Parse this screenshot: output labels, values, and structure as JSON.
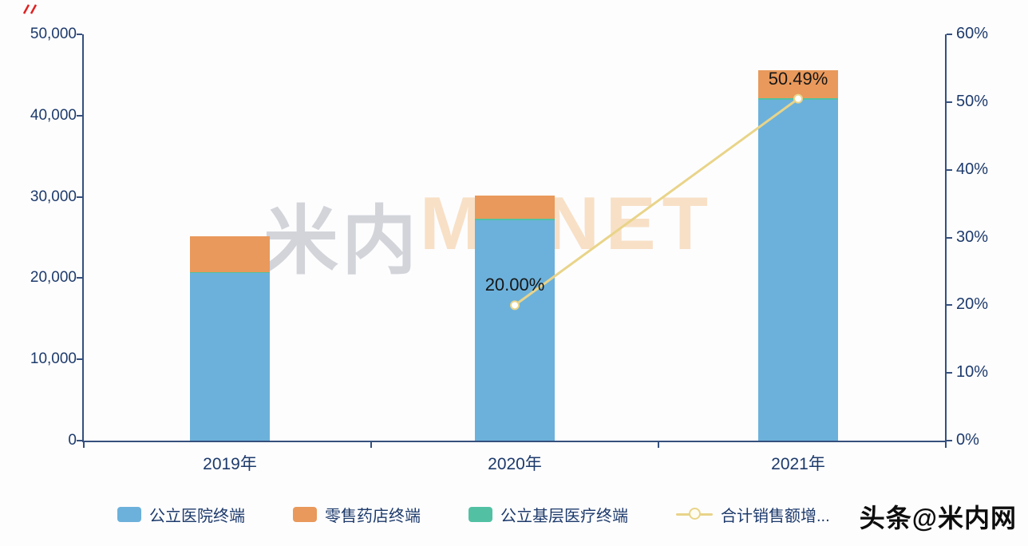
{
  "chart_data": {
    "type": "bar",
    "title": "",
    "categories": [
      "2019年",
      "2020年",
      "2021年"
    ],
    "bar_series": [
      {
        "name": "公立医院终端",
        "color": "#6CB1DB",
        "values": [
          20600,
          27100,
          41900
        ]
      },
      {
        "name": "公立基层医疗终端",
        "color": "#52C1A3",
        "values": [
          150,
          200,
          200
        ]
      },
      {
        "name": "零售药店终端",
        "color": "#E9995B",
        "values": [
          4350,
          2900,
          3500
        ]
      }
    ],
    "line_series": {
      "name": "合计销售额增...",
      "color": "#E9D489",
      "values": [
        null,
        20.0,
        50.49
      ],
      "point_labels": [
        "",
        "20.00%",
        "50.49%"
      ]
    },
    "left_axis": {
      "min": 0,
      "max": 50000,
      "ticks": [
        "0",
        "10,000",
        "20,000",
        "30,000",
        "40,000",
        "50,000"
      ]
    },
    "right_axis": {
      "min": 0,
      "max": 60,
      "ticks": [
        "0%",
        "10%",
        "20%",
        "30%",
        "40%",
        "50%",
        "60%"
      ]
    },
    "legend": [
      {
        "label": "公立医院终端",
        "type": "bar",
        "color": "#6CB1DB"
      },
      {
        "label": "零售药店终端",
        "type": "bar",
        "color": "#E9995B"
      },
      {
        "label": "公立基层医疗终端",
        "type": "bar",
        "color": "#52C1A3"
      },
      {
        "label": "合计销售额增...",
        "type": "line",
        "color": "#E9D489"
      }
    ],
    "grid": false,
    "legend_position": "bottom"
  },
  "watermark": {
    "cn": "米内",
    "en": "MENET"
  },
  "branding": "头条@米内网"
}
